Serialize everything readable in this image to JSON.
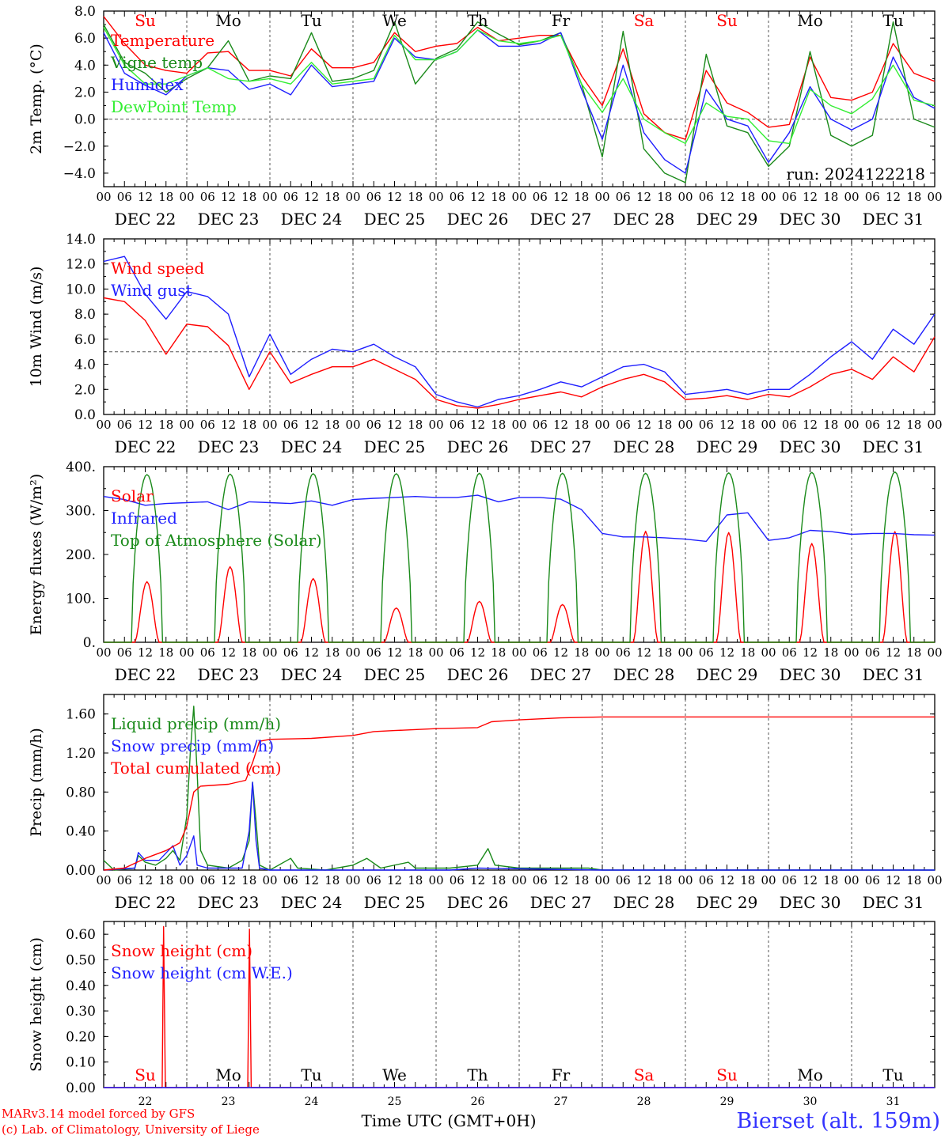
{
  "header": {
    "run_label": "run: 2024122218"
  },
  "footer": {
    "credit_line1": "MARv3.14 model forced by GFS",
    "credit_line2": "(c) Lab. of Climatology, University of Liege",
    "station": "Bierset (alt. 159m)",
    "xaxis_title": "Time UTC (GMT+0H)"
  },
  "colors": {
    "red": "#ff0000",
    "green": "#1a8a1a",
    "blue": "#1f1fff",
    "lightgreen": "#33ee33",
    "axis": "#000000",
    "grid": "#555555"
  },
  "time_axis": {
    "hour_ticks": [
      "00",
      "06",
      "12",
      "18"
    ],
    "final_tick": "00",
    "day_labels": [
      "DEC 22",
      "DEC 23",
      "DEC 24",
      "DEC 25",
      "DEC 26",
      "DEC 27",
      "DEC 28",
      "DEC 29",
      "DEC 30",
      "DEC 31"
    ],
    "weekday_labels": [
      "Su",
      "Mo",
      "Tu",
      "We",
      "Th",
      "Fr",
      "Sa",
      "Su",
      "Mo",
      "Tu"
    ],
    "weekday_colors": [
      "#ff0000",
      "#000000",
      "#000000",
      "#000000",
      "#000000",
      "#000000",
      "#ff0000",
      "#ff0000",
      "#000000",
      "#000000"
    ],
    "day_numbers": [
      "22",
      "23",
      "24",
      "25",
      "26",
      "27",
      "28",
      "29",
      "30",
      "31"
    ]
  },
  "chart_data": [
    {
      "type": "line",
      "ylabel": "2m Temp. (°C)",
      "ylim": [
        -5.0,
        8.0
      ],
      "yticks": [
        "8.0",
        "6.0",
        "4.0",
        "2.0",
        "0.0",
        "−2.0",
        "−4.0"
      ],
      "ytick_values": [
        8,
        6,
        4,
        2,
        0,
        -2,
        -4
      ],
      "ref_line": 0,
      "legend_placement": "top-left",
      "x_hours": [
        0,
        6,
        12,
        18,
        24,
        30,
        36,
        42,
        48,
        54,
        60,
        66,
        72,
        78,
        84,
        90,
        96,
        102,
        108,
        114,
        120,
        126,
        132,
        138,
        144,
        150,
        156,
        162,
        168,
        174,
        180,
        186,
        192,
        198,
        204,
        210,
        216,
        222,
        228,
        234,
        240
      ],
      "series": [
        {
          "name": "Temperature",
          "color": "#ff0000",
          "values": [
            7.6,
            5.6,
            4.0,
            3.6,
            3.4,
            4.9,
            5.0,
            3.6,
            3.6,
            3.2,
            5.2,
            3.8,
            3.8,
            4.2,
            6.4,
            5.0,
            5.4,
            5.6,
            6.8,
            5.8,
            6.0,
            6.2,
            6.2,
            3.2,
            1.0,
            5.2,
            0.4,
            -1.0,
            -1.5,
            3.6,
            1.2,
            0.5,
            -0.6,
            -0.4,
            4.6,
            1.6,
            1.4,
            2.0,
            5.6,
            3.4,
            2.8
          ]
        },
        {
          "name": "Vigne temp",
          "color": "#1a8a1a",
          "values": [
            7.0,
            4.2,
            3.4,
            2.0,
            3.0,
            3.8,
            5.8,
            2.8,
            3.2,
            3.0,
            6.4,
            2.8,
            3.0,
            3.6,
            7.2,
            2.6,
            4.5,
            5.2,
            7.2,
            6.3,
            5.5,
            5.8,
            6.4,
            2.6,
            -2.8,
            6.5,
            -2.2,
            -4.0,
            -4.7,
            4.8,
            -0.5,
            -1.0,
            -3.5,
            -2.0,
            5.0,
            -1.2,
            -2.0,
            -1.2,
            7.2,
            0.0,
            -0.6
          ]
        },
        {
          "name": "Humidex",
          "color": "#1f1fff",
          "values": [
            6.4,
            3.4,
            2.5,
            1.8,
            3.2,
            3.8,
            3.6,
            2.2,
            2.6,
            1.8,
            4.0,
            2.4,
            2.6,
            2.8,
            6.0,
            4.6,
            4.4,
            5.0,
            6.6,
            5.4,
            5.4,
            5.6,
            6.4,
            2.2,
            -1.5,
            4.0,
            -1.0,
            -3.0,
            -4.0,
            2.2,
            0.0,
            -0.5,
            -3.2,
            -1.0,
            2.4,
            0.0,
            -0.8,
            0.0,
            4.6,
            1.6,
            0.8
          ]
        },
        {
          "name": "DewPoint Temp",
          "color": "#33ee33",
          "values": [
            6.8,
            4.0,
            2.6,
            2.6,
            3.2,
            3.8,
            3.0,
            2.8,
            3.0,
            2.6,
            4.2,
            2.6,
            2.8,
            3.0,
            6.2,
            4.4,
            4.4,
            5.0,
            6.6,
            5.8,
            5.6,
            5.8,
            6.2,
            2.6,
            0.5,
            3.0,
            0.0,
            -1.0,
            -1.8,
            1.2,
            0.2,
            0.0,
            -1.6,
            -1.8,
            2.2,
            1.0,
            0.4,
            1.5,
            4.0,
            1.4,
            1.0
          ]
        }
      ]
    },
    {
      "type": "line",
      "ylabel": "10m Wind (m/s)",
      "ylim": [
        0,
        14.0
      ],
      "yticks": [
        "14.0",
        "12.0",
        "10.0",
        "8.0",
        "6.0",
        "4.0",
        "2.0",
        "0.0"
      ],
      "ytick_values": [
        14,
        12,
        10,
        8,
        6,
        4,
        2,
        0
      ],
      "ref_line": 5,
      "legend_placement": "top-left",
      "x_hours": [
        0,
        6,
        12,
        18,
        24,
        30,
        36,
        42,
        48,
        54,
        60,
        66,
        72,
        78,
        84,
        90,
        96,
        102,
        108,
        114,
        120,
        126,
        132,
        138,
        144,
        150,
        156,
        162,
        168,
        174,
        180,
        186,
        192,
        198,
        204,
        210,
        216,
        222,
        228,
        234,
        240
      ],
      "series": [
        {
          "name": "Wind speed",
          "color": "#ff0000",
          "values": [
            9.3,
            9.0,
            7.5,
            4.8,
            7.2,
            7.0,
            5.5,
            2.0,
            5.0,
            2.5,
            3.2,
            3.8,
            3.8,
            4.4,
            3.6,
            2.8,
            1.2,
            0.7,
            0.5,
            0.8,
            1.2,
            1.5,
            1.8,
            1.4,
            2.2,
            2.8,
            3.2,
            2.6,
            1.2,
            1.3,
            1.5,
            1.2,
            1.6,
            1.4,
            2.2,
            3.2,
            3.6,
            2.8,
            4.6,
            3.4,
            6.2
          ]
        },
        {
          "name": "Wind gust",
          "color": "#1f1fff",
          "values": [
            12.2,
            12.6,
            9.6,
            7.6,
            9.8,
            9.4,
            8.0,
            3.0,
            6.4,
            3.2,
            4.4,
            5.2,
            5.0,
            5.6,
            4.6,
            3.8,
            1.6,
            1.0,
            0.6,
            1.2,
            1.5,
            2.0,
            2.6,
            2.2,
            3.0,
            3.8,
            4.0,
            3.4,
            1.6,
            1.8,
            2.0,
            1.6,
            2.0,
            2.0,
            3.2,
            4.6,
            5.8,
            4.4,
            6.8,
            5.6,
            8.0
          ]
        }
      ]
    },
    {
      "type": "line",
      "ylabel": "Energy fluxes (W/m²)",
      "ylim": [
        0,
        400
      ],
      "yticks": [
        "400.",
        "300.",
        "200.",
        "100.",
        "0."
      ],
      "ytick_values": [
        400,
        300,
        200,
        100,
        0
      ],
      "legend_placement": "top-left",
      "x_hours": [
        0,
        6,
        12,
        18,
        24,
        30,
        36,
        42,
        48,
        54,
        60,
        66,
        72,
        78,
        84,
        90,
        96,
        102,
        108,
        114,
        120,
        126,
        132,
        138,
        144,
        150,
        156,
        162,
        168,
        174,
        180,
        186,
        192,
        198,
        204,
        210,
        216,
        222,
        228,
        234,
        240
      ],
      "series": [
        {
          "name": "Solar",
          "color": "#ff0000",
          "day_peaks": [
            138,
            172,
            145,
            78,
            93,
            86,
            253,
            250,
            225,
            252
          ]
        },
        {
          "name": "Infrared",
          "color": "#1f1fff",
          "values": [
            332,
            325,
            312,
            316,
            318,
            320,
            302,
            320,
            318,
            316,
            322,
            312,
            325,
            328,
            330,
            332,
            330,
            330,
            335,
            320,
            330,
            330,
            326,
            302,
            248,
            240,
            240,
            238,
            235,
            230,
            290,
            295,
            232,
            238,
            255,
            252,
            246,
            248,
            248,
            245,
            244
          ]
        },
        {
          "name": "Top of Atmosphere (Solar)",
          "color": "#1a8a1a",
          "day_peaks": [
            382,
            383,
            384,
            384,
            385,
            385,
            385,
            386,
            387,
            388
          ]
        }
      ]
    },
    {
      "type": "line",
      "ylabel": "Precip (mm/h)",
      "ylim": [
        0,
        1.8
      ],
      "yticks": [
        "1.60",
        "1.20",
        "0.80",
        "0.40",
        "0.00"
      ],
      "ytick_values": [
        1.6,
        1.2,
        0.8,
        0.4,
        0.0
      ],
      "legend_placement": "top-left",
      "series": [
        {
          "name": "Liquid precip (mm/h)",
          "color": "#1a8a1a",
          "points": [
            [
              0,
              0.1
            ],
            [
              3,
              0.0
            ],
            [
              9,
              0.02
            ],
            [
              10,
              0.15
            ],
            [
              12,
              0.08
            ],
            [
              15,
              0.05
            ],
            [
              18,
              0.12
            ],
            [
              20,
              0.2
            ],
            [
              22,
              0.1
            ],
            [
              24,
              0.55
            ],
            [
              25,
              1.2
            ],
            [
              26,
              1.68
            ],
            [
              27,
              1.0
            ],
            [
              28,
              0.2
            ],
            [
              30,
              0.05
            ],
            [
              36,
              0.02
            ],
            [
              40,
              0.1
            ],
            [
              42,
              0.3
            ],
            [
              43,
              0.9
            ],
            [
              44,
              0.5
            ],
            [
              45,
              0.05
            ],
            [
              48,
              0.0
            ],
            [
              54,
              0.12
            ],
            [
              56,
              0.02
            ],
            [
              64,
              0.0
            ],
            [
              72,
              0.05
            ],
            [
              76,
              0.12
            ],
            [
              80,
              0.02
            ],
            [
              88,
              0.08
            ],
            [
              90,
              0.02
            ],
            [
              100,
              0.02
            ],
            [
              108,
              0.05
            ],
            [
              111,
              0.22
            ],
            [
              113,
              0.05
            ],
            [
              120,
              0.02
            ],
            [
              140,
              0.02
            ],
            [
              144,
              0.0
            ],
            [
              240,
              0.0
            ]
          ]
        },
        {
          "name": "Snow precip (mm/h)",
          "color": "#1f1fff",
          "points": [
            [
              0,
              0.0
            ],
            [
              9,
              0.02
            ],
            [
              10,
              0.18
            ],
            [
              12,
              0.1
            ],
            [
              16,
              0.1
            ],
            [
              20,
              0.25
            ],
            [
              22,
              0.05
            ],
            [
              24,
              0.15
            ],
            [
              26,
              0.35
            ],
            [
              27,
              0.05
            ],
            [
              30,
              0.02
            ],
            [
              38,
              0.02
            ],
            [
              40,
              0.02
            ],
            [
              42,
              0.4
            ],
            [
              43,
              0.9
            ],
            [
              44,
              0.3
            ],
            [
              45,
              0.02
            ],
            [
              48,
              0.0
            ],
            [
              100,
              0.0
            ],
            [
              108,
              0.02
            ],
            [
              144,
              0.0
            ],
            [
              240,
              0.0
            ]
          ]
        },
        {
          "name": "Total cumulated (cm)",
          "color": "#ff0000",
          "points": [
            [
              0,
              0.0
            ],
            [
              6,
              0.02
            ],
            [
              12,
              0.12
            ],
            [
              18,
              0.2
            ],
            [
              22,
              0.28
            ],
            [
              24,
              0.45
            ],
            [
              26,
              0.8
            ],
            [
              28,
              0.86
            ],
            [
              36,
              0.88
            ],
            [
              41,
              0.92
            ],
            [
              43,
              1.1
            ],
            [
              45,
              1.32
            ],
            [
              48,
              1.34
            ],
            [
              60,
              1.35
            ],
            [
              72,
              1.38
            ],
            [
              78,
              1.42
            ],
            [
              84,
              1.43
            ],
            [
              96,
              1.45
            ],
            [
              108,
              1.46
            ],
            [
              112,
              1.52
            ],
            [
              120,
              1.54
            ],
            [
              132,
              1.56
            ],
            [
              144,
              1.57
            ],
            [
              240,
              1.57
            ]
          ]
        }
      ]
    },
    {
      "type": "line",
      "ylabel": "Snow height (cm)",
      "ylim": [
        0,
        0.65
      ],
      "yticks": [
        "0.60",
        "0.50",
        "0.40",
        "0.30",
        "0.20",
        "0.10",
        "0.00"
      ],
      "ytick_values": [
        0.6,
        0.5,
        0.4,
        0.3,
        0.2,
        0.1,
        0.0
      ],
      "legend_placement": "top-left",
      "series": [
        {
          "name": "Snow height (cm)",
          "color": "#ff0000",
          "points": [
            [
              0,
              0.0
            ],
            [
              16.9,
              0.0
            ],
            [
              17.3,
              0.63
            ],
            [
              17.8,
              0.0
            ],
            [
              41.6,
              0.0
            ],
            [
              42.1,
              0.62
            ],
            [
              42.6,
              0.0
            ],
            [
              240,
              0.0
            ]
          ]
        },
        {
          "name": "Snow height (cm W.E.)",
          "color": "#1f1fff",
          "points": [
            [
              0,
              0.0
            ],
            [
              240,
              0.0
            ]
          ]
        }
      ]
    }
  ]
}
